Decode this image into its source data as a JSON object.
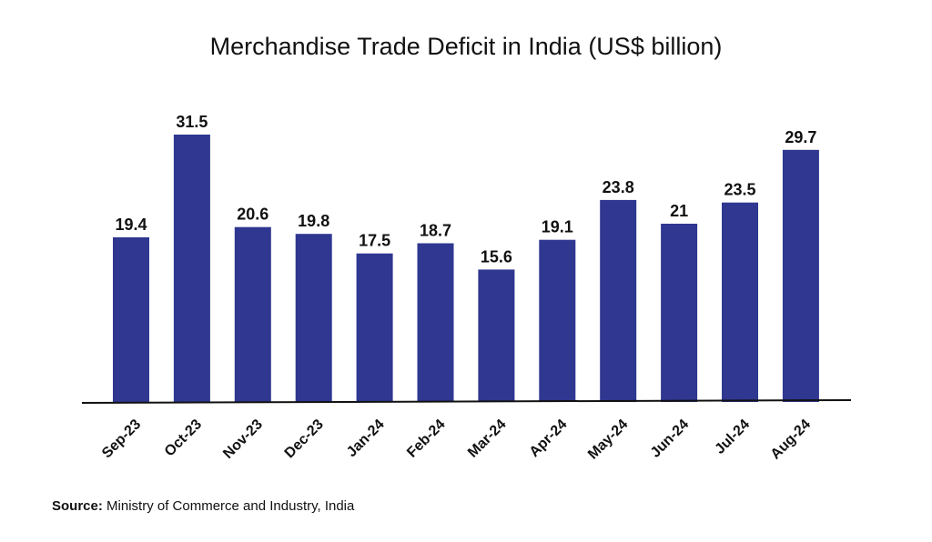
{
  "chart_data": {
    "type": "bar",
    "title": "Merchandise Trade Deficit in India (US$ billion)",
    "categories": [
      "Sep-23",
      "Oct-23",
      "Nov-23",
      "Dec-23",
      "Jan-24",
      "Feb-24",
      "Mar-24",
      "Apr-24",
      "May-24",
      "Jun-24",
      "Jul-24",
      "Aug-24"
    ],
    "values": [
      19.4,
      31.5,
      20.6,
      19.8,
      17.5,
      18.7,
      15.6,
      19.1,
      23.8,
      21,
      23.5,
      29.7
    ],
    "value_labels": [
      "19.4",
      "31.5",
      "20.6",
      "19.8",
      "17.5",
      "18.7",
      "15.6",
      "19.1",
      "23.8",
      "21",
      "23.5",
      "29.7"
    ],
    "xlabel": "",
    "ylabel": "",
    "ylim": [
      0,
      31.5
    ],
    "grid": false,
    "legend": "none",
    "bar_color": "#2f3790",
    "axis_color": "#111111"
  },
  "source": {
    "label": "Source:",
    "text": " Ministry of Commerce and Industry, India"
  }
}
